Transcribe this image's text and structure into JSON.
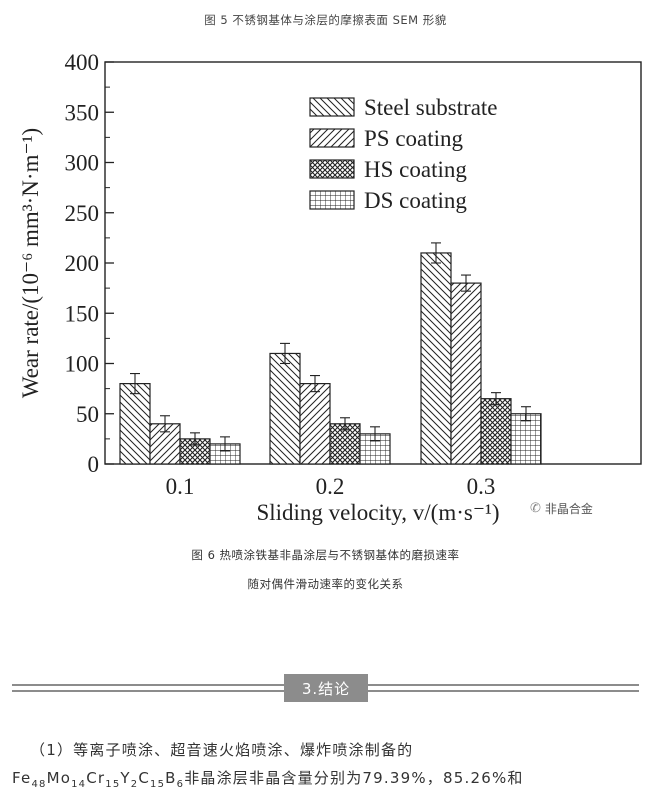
{
  "top_caption": "图 5 不锈钢基体与涂层的摩擦表面 SEM 形貌",
  "chart_data": {
    "type": "bar",
    "categories": [
      "0.1",
      "0.2",
      "0.3"
    ],
    "series": [
      {
        "name": "Steel substrate",
        "values": [
          80,
          110,
          210
        ],
        "errors": [
          10,
          10,
          10
        ],
        "pattern": "back-diagonal"
      },
      {
        "name": "PS coating",
        "values": [
          40,
          80,
          180
        ],
        "errors": [
          8,
          8,
          8
        ],
        "pattern": "diagonal"
      },
      {
        "name": "HS coating",
        "values": [
          25,
          40,
          65
        ],
        "errors": [
          6,
          6,
          6
        ],
        "pattern": "crosshatch-diagonal"
      },
      {
        "name": "DS coating",
        "values": [
          20,
          30,
          50
        ],
        "errors": [
          7,
          7,
          7
        ],
        "pattern": "grid"
      }
    ],
    "ylabel": "Wear rate/(10⁻⁶ mm³·N·m⁻¹)",
    "xlabel": "Sliding velocity, v/(m·s⁻¹)",
    "ylim": [
      0,
      400
    ],
    "yticks": [
      "0",
      "50",
      "100",
      "150",
      "200",
      "250",
      "300",
      "350",
      "400"
    ],
    "legend_position": "top-right",
    "grid": false
  },
  "watermark": {
    "icon": "wechat-icon",
    "text": "非晶合金"
  },
  "figure_caption": {
    "line1": "图 6 热喷涂铁基非晶涂层与不锈钢基体的磨损速率",
    "line2": "随对偶件滑动速率的变化关系"
  },
  "section": {
    "title": "3.结论"
  },
  "paragraph": {
    "line1": "（1）等离子喷涂、超音速火焰喷涂、爆炸喷涂制备的",
    "line2_prefix": "Fe",
    "line2_formula": [
      {
        "el": "Fe",
        "n": "48"
      },
      {
        "el": "Mo",
        "n": "14"
      },
      {
        "el": "Cr",
        "n": "15"
      },
      {
        "el": "Y",
        "n": "2"
      },
      {
        "el": "C",
        "n": "15"
      },
      {
        "el": "B",
        "n": "6"
      }
    ],
    "line2_text": "非晶涂层非晶含量分别为79.39%，85.26%和"
  }
}
